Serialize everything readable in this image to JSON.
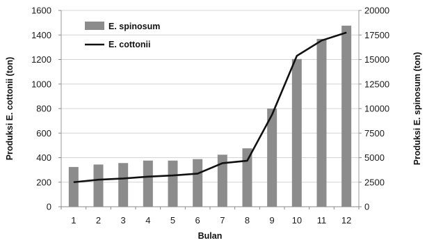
{
  "chart_data": {
    "type": "bar",
    "categories": [
      "1",
      "2",
      "3",
      "4",
      "5",
      "6",
      "7",
      "8",
      "9",
      "10",
      "11",
      "12"
    ],
    "series": [
      {
        "name": "E. spinosum",
        "type": "bar",
        "axis": "right",
        "color": "#8c8c8c",
        "values": [
          4050,
          4300,
          4450,
          4700,
          4700,
          4850,
          5300,
          5950,
          10000,
          15050,
          17100,
          18450
        ]
      },
      {
        "name": "E. cottonii",
        "type": "line",
        "axis": "left",
        "color": "#111111",
        "values": [
          200,
          220,
          230,
          245,
          255,
          270,
          355,
          375,
          750,
          1230,
          1355,
          1420
        ]
      }
    ],
    "xlabel": "Bulan",
    "ylabel": "Produksi E. cottonii (ton)",
    "y2label": "Produksi E. spinosum (ton)",
    "ylim": [
      0,
      1600
    ],
    "yticks": [
      0,
      200,
      400,
      600,
      800,
      1000,
      1200,
      1400,
      1600
    ],
    "y2lim": [
      0,
      20000
    ],
    "y2ticks": [
      0,
      2500,
      5000,
      7500,
      10000,
      12500,
      15000,
      17500,
      20000
    ],
    "grid": true,
    "legend": "top-left"
  }
}
